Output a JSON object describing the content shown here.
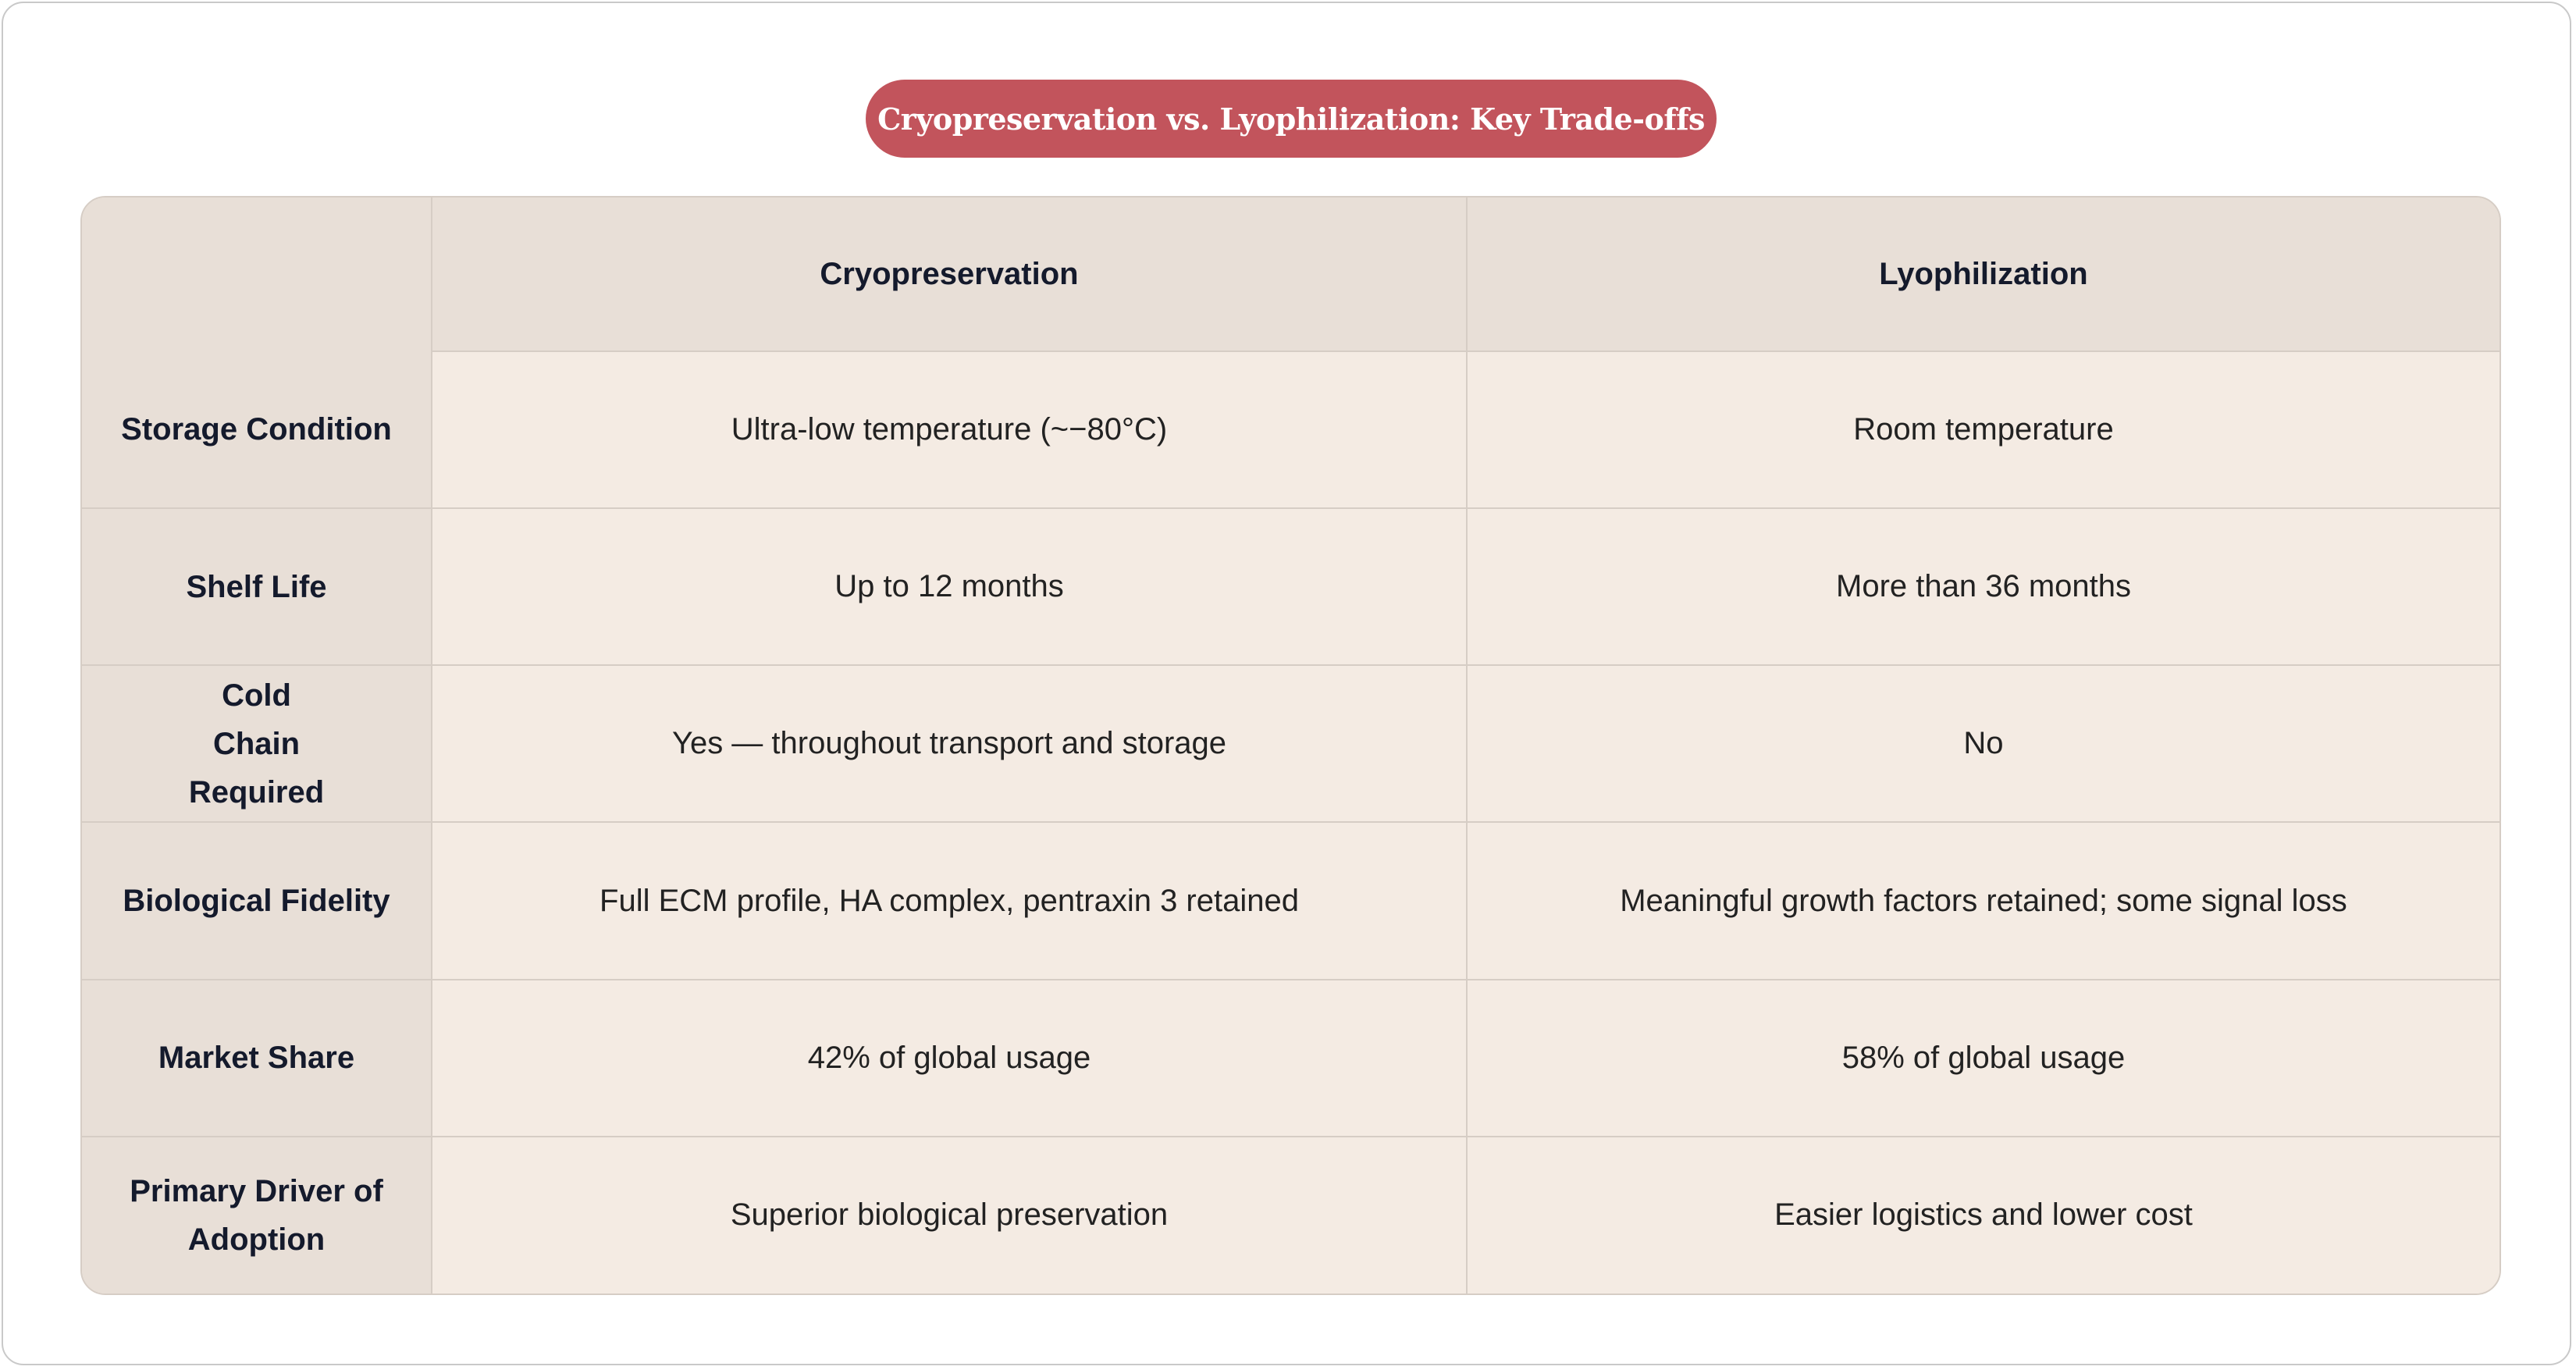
{
  "title": "Cryopreservation vs. Lyophilization: Key Trade-offs",
  "colors": {
    "accent": "#c2545c",
    "header_bg": "#e8dfd7",
    "cell_bg": "#f4ebe3",
    "border": "#d6cdc5"
  },
  "table": {
    "columns": [
      "",
      "Cryopreservation",
      "Lyophilization"
    ],
    "rows": [
      {
        "label": "Storage Condition",
        "cryo": "Ultra-low temperature (~−80°C)",
        "lyo": "Room temperature"
      },
      {
        "label": "Shelf Life",
        "cryo": "Up to 12 months",
        "lyo": "More than 36 months"
      },
      {
        "label": "Cold Chain Required",
        "cryo": "Yes — throughout transport and storage",
        "lyo": "No"
      },
      {
        "label": "Biological Fidelity",
        "cryo": "Full ECM profile, HA complex, pentraxin 3 retained",
        "lyo": "Meaningful growth factors retained; some signal loss"
      },
      {
        "label": "Market Share",
        "cryo": "42% of global usage",
        "lyo": "58% of global usage"
      },
      {
        "label": "Primary Driver of Adoption",
        "cryo": "Superior biological preservation",
        "lyo": "Easier logistics and lower cost"
      }
    ]
  }
}
